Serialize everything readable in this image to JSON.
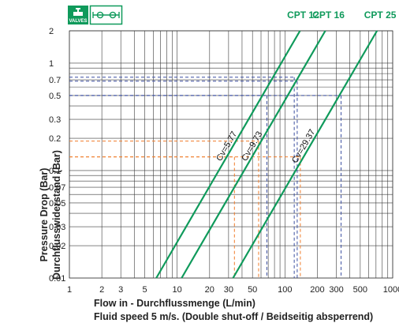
{
  "chart_data": {
    "type": "line",
    "title": "",
    "xscale": "log",
    "yscale": "log",
    "xlim": [
      1,
      1000
    ],
    "ylim": [
      0.01,
      2
    ],
    "xticks": [
      "1",
      "2",
      "3",
      "5",
      "10",
      "20",
      "30",
      "50",
      "100",
      "200",
      "300",
      "500",
      "1000"
    ],
    "yticks": [
      "2",
      "1",
      "0.7",
      "0.5",
      "0.3",
      "0.2",
      "0.1",
      "0.07",
      "0.05",
      "0.03",
      "0.02",
      "0.01"
    ],
    "xlabel_line1": "Flow in - Durchflussmenge (L/min)",
    "xlabel_line2": "Fluid speed 5 m/s. (Double shut-off / Beidseitig absperrend)",
    "ylabel_line1": "Pressure Drop (Bar)",
    "ylabel_line2": "Durchflusswiderstand (Bar)",
    "grid": true,
    "series": [
      {
        "name": "CPT 12",
        "cv_label": "Cv=5.77",
        "x": [
          6.4,
          138
        ],
        "y": [
          0.01,
          2
        ]
      },
      {
        "name": "CPT 16",
        "cv_label": "Cv=9.73",
        "x": [
          11,
          237
        ],
        "y": [
          0.01,
          2
        ]
      },
      {
        "name": "CPT 25",
        "cv_label": "Cv=29.37",
        "x": [
          33,
          715
        ],
        "y": [
          0.01,
          2
        ]
      }
    ],
    "reference_lines": [
      {
        "style": "orange-dashed",
        "x": 34,
        "y": 0.134
      },
      {
        "style": "orange-dashed",
        "x": 57,
        "y": 0.188
      },
      {
        "style": "orange-dashed",
        "x": 139,
        "y": 0.134
      },
      {
        "style": "blue-dashed",
        "x": 68,
        "y": 0.5
      },
      {
        "style": "blue-dashed",
        "x": 122,
        "y": 0.74
      },
      {
        "style": "blue-dashed",
        "x": 130,
        "y": 0.68
      },
      {
        "style": "blue-dashed",
        "x": 332,
        "y": 0.5
      }
    ]
  },
  "colors": {
    "series": "#0f9a5b",
    "grid": "#3a3a3a",
    "reference_orange": "#f07c2a",
    "reference_blue": "#3a4ea0"
  },
  "logo": {
    "badge_text": "VALVES",
    "icon": "valve-symbol-icon"
  }
}
